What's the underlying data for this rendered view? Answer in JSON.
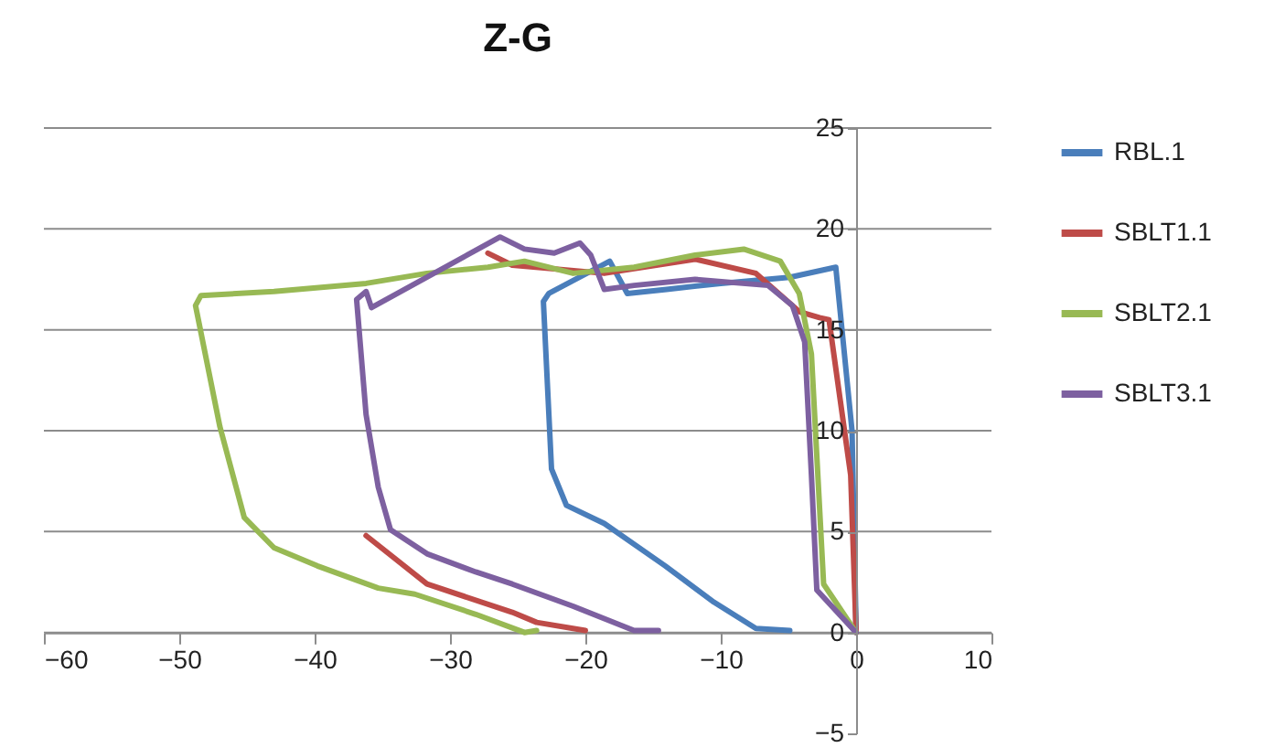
{
  "chart_data": {
    "type": "line",
    "title": "Z-G",
    "series": [
      {
        "name": "RBL.1",
        "color": "#4a7ebb",
        "x": [
          0,
          -0.3,
          -1.5,
          -4.9,
          -10,
          -14,
          -16.9,
          -18.2,
          -22.7,
          -23.1,
          -22.5,
          -21.4,
          -18.6,
          -14.1,
          -10.5,
          -7.4,
          -4.9
        ],
        "values": [
          0.2,
          10,
          18.1,
          17.6,
          17.3,
          17.0,
          16.8,
          18.4,
          16.8,
          16.4,
          8.1,
          6.3,
          5.4,
          3.3,
          1.5,
          0.2,
          0.1
        ]
      },
      {
        "name": "SBLT1.1",
        "color": "#be4b48",
        "x": [
          0,
          -0.4,
          -2.0,
          -2.7,
          -4.2,
          -7.4,
          -11.9,
          -18.6,
          -25.4,
          -27.2,
          -31.5,
          -36.2,
          -31.7,
          -25.4,
          -23.6,
          -20
        ],
        "values": [
          0,
          7.8,
          15.5,
          15.6,
          15.9,
          17.8,
          18.5,
          17.8,
          18.2,
          18.8,
          null,
          4.8,
          2.4,
          1.0,
          0.5,
          0.1
        ]
      },
      {
        "name": "SBLT2.1",
        "color": "#98b954",
        "x": [
          0,
          -2.4,
          -3.3,
          -4.2,
          -5.6,
          -8.3,
          -11.9,
          -16.4,
          -20.9,
          -24.5,
          -27.2,
          -31.7,
          -36.2,
          -43.0,
          -48.4,
          -48.8,
          -47.0,
          -45.2,
          -43.0,
          -39.8,
          -35.3,
          -32.6,
          -28.1,
          -24.5,
          -23.6
        ],
        "values": [
          0,
          2.4,
          13.8,
          16.8,
          18.4,
          19.0,
          18.7,
          18.1,
          17.8,
          18.4,
          18.1,
          17.8,
          17.3,
          16.9,
          16.7,
          16.2,
          10.2,
          5.7,
          4.2,
          3.3,
          2.2,
          1.9,
          0.9,
          0,
          0.1
        ]
      },
      {
        "name": "SBLT3.1",
        "color": "#7d60a0",
        "x": [
          0,
          -2.9,
          -3.3,
          -3.8,
          -4.7,
          -6.5,
          -11.9,
          -16.4,
          -18.6,
          -19.6,
          -20.4,
          -22.3,
          -24.5,
          -26.3,
          -35.8,
          -36.2,
          -36.9,
          -36.2,
          -35.3,
          -34.4,
          -31.7,
          -28.1,
          -25.4,
          -20.9,
          -16.4,
          -14.6
        ],
        "values": [
          0,
          2.1,
          7.8,
          14.4,
          16.2,
          17.2,
          17.5,
          17.2,
          17.0,
          18.7,
          19.3,
          18.8,
          19.0,
          19.6,
          16.1,
          16.9,
          16.5,
          10.8,
          7.2,
          5.1,
          3.9,
          3.0,
          2.4,
          1.3,
          0.1,
          0.1
        ]
      }
    ],
    "xlim": [
      -60,
      10
    ],
    "xticks": [
      -60,
      -50,
      -40,
      -30,
      -20,
      -10,
      0,
      10
    ],
    "ylim": [
      -5,
      25
    ],
    "yticks": [
      -5,
      0,
      5,
      10,
      15,
      20,
      25
    ],
    "grid": "y",
    "legend": "right"
  }
}
